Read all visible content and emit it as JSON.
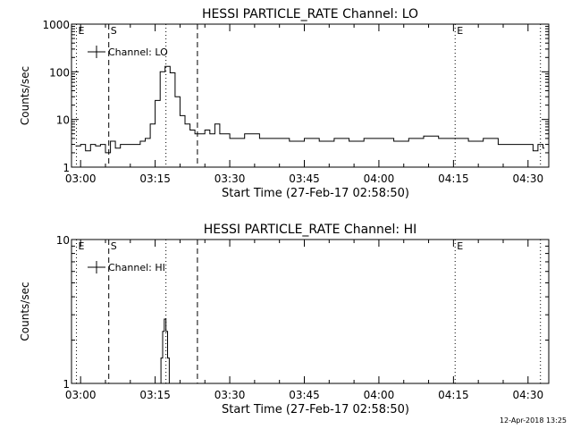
{
  "footer_stamp": "12-Apr-2018 13:25",
  "chart_data": [
    {
      "type": "line",
      "title": "HESSI PARTICLE_RATE Channel: LO",
      "xlabel": "Start Time (27-Feb-17 02:58:50)",
      "ylabel": "Counts/sec",
      "y_scale": "log",
      "ylim": [
        1,
        1000
      ],
      "yticks": [
        "1",
        "10",
        "100",
        "1000"
      ],
      "xlim_minutes": [
        -1.83,
        94.17
      ],
      "xticks": [
        "03:00",
        "03:15",
        "03:30",
        "03:45",
        "04:00",
        "04:15",
        "04:30"
      ],
      "legend": {
        "position": "top-left",
        "entries": [
          "Channel: LO"
        ]
      },
      "markers": [
        {
          "label": "E",
          "time": "02:59:10",
          "style": "dotted"
        },
        {
          "label": "S",
          "time": "03:05:40",
          "style": "dashed"
        },
        {
          "label": "",
          "time": "03:17:10",
          "style": "dotted"
        },
        {
          "label": "",
          "time": "03:23:30",
          "style": "dashed"
        },
        {
          "label": "E",
          "time": "04:15:20",
          "style": "dotted"
        },
        {
          "label": "",
          "time": "04:32:30",
          "style": "dotted"
        }
      ],
      "series": [
        {
          "name": "Channel: LO",
          "x": [
            "02:59",
            "03:00",
            "03:01",
            "03:02",
            "03:03",
            "03:04",
            "03:05",
            "03:06",
            "03:07",
            "03:08",
            "03:09",
            "03:10",
            "03:11",
            "03:12",
            "03:13",
            "03:14",
            "03:15",
            "03:16",
            "03:17",
            "03:18",
            "03:19",
            "03:20",
            "03:21",
            "03:22",
            "03:23",
            "03:24",
            "03:25",
            "03:26",
            "03:27",
            "03:28",
            "03:30",
            "03:33",
            "03:36",
            "03:39",
            "03:42",
            "03:45",
            "03:48",
            "03:51",
            "03:54",
            "03:57",
            "04:00",
            "04:03",
            "04:06",
            "04:09",
            "04:12",
            "04:15",
            "04:18",
            "04:21",
            "04:24",
            "04:27",
            "04:30",
            "04:31",
            "04:32",
            "04:33"
          ],
          "y": [
            2.8,
            3,
            2.2,
            3,
            2.8,
            3,
            2,
            3.5,
            2.5,
            3,
            3,
            3,
            3,
            3.5,
            4,
            8,
            25,
            100,
            130,
            95,
            30,
            12,
            8,
            6,
            5,
            5,
            6,
            5,
            8,
            5,
            4,
            5,
            4,
            4,
            3.5,
            4,
            3.5,
            4,
            3.5,
            4,
            4,
            3.5,
            4,
            4.5,
            4,
            4,
            3.5,
            4,
            3,
            3,
            3,
            2.2,
            3,
            2.5
          ]
        }
      ]
    },
    {
      "type": "line",
      "title": "HESSI PARTICLE_RATE Channel: HI",
      "xlabel": "Start Time (27-Feb-17 02:58:50)",
      "ylabel": "Counts/sec",
      "y_scale": "log",
      "ylim": [
        1,
        10
      ],
      "yticks": [
        "1",
        "10"
      ],
      "xlim_minutes": [
        -1.83,
        94.17
      ],
      "xticks": [
        "03:00",
        "03:15",
        "03:30",
        "03:45",
        "04:00",
        "04:15",
        "04:30"
      ],
      "legend": {
        "position": "top-left",
        "entries": [
          "Channel: HI"
        ]
      },
      "markers": [
        {
          "label": "E",
          "time": "02:59:10",
          "style": "dotted"
        },
        {
          "label": "S",
          "time": "03:05:40",
          "style": "dashed"
        },
        {
          "label": "",
          "time": "03:17:10",
          "style": "dotted"
        },
        {
          "label": "",
          "time": "03:23:30",
          "style": "dashed"
        },
        {
          "label": "E",
          "time": "04:15:20",
          "style": "dotted"
        },
        {
          "label": "",
          "time": "04:32:30",
          "style": "dotted"
        }
      ],
      "series": [
        {
          "name": "Channel: HI",
          "x": [
            "03:15:50",
            "03:16:10",
            "03:16:30",
            "03:16:50",
            "03:17:10",
            "03:17:30",
            "03:17:50"
          ],
          "y": [
            1,
            1.5,
            2.3,
            2.8,
            2.3,
            1.5,
            1
          ]
        }
      ]
    }
  ]
}
